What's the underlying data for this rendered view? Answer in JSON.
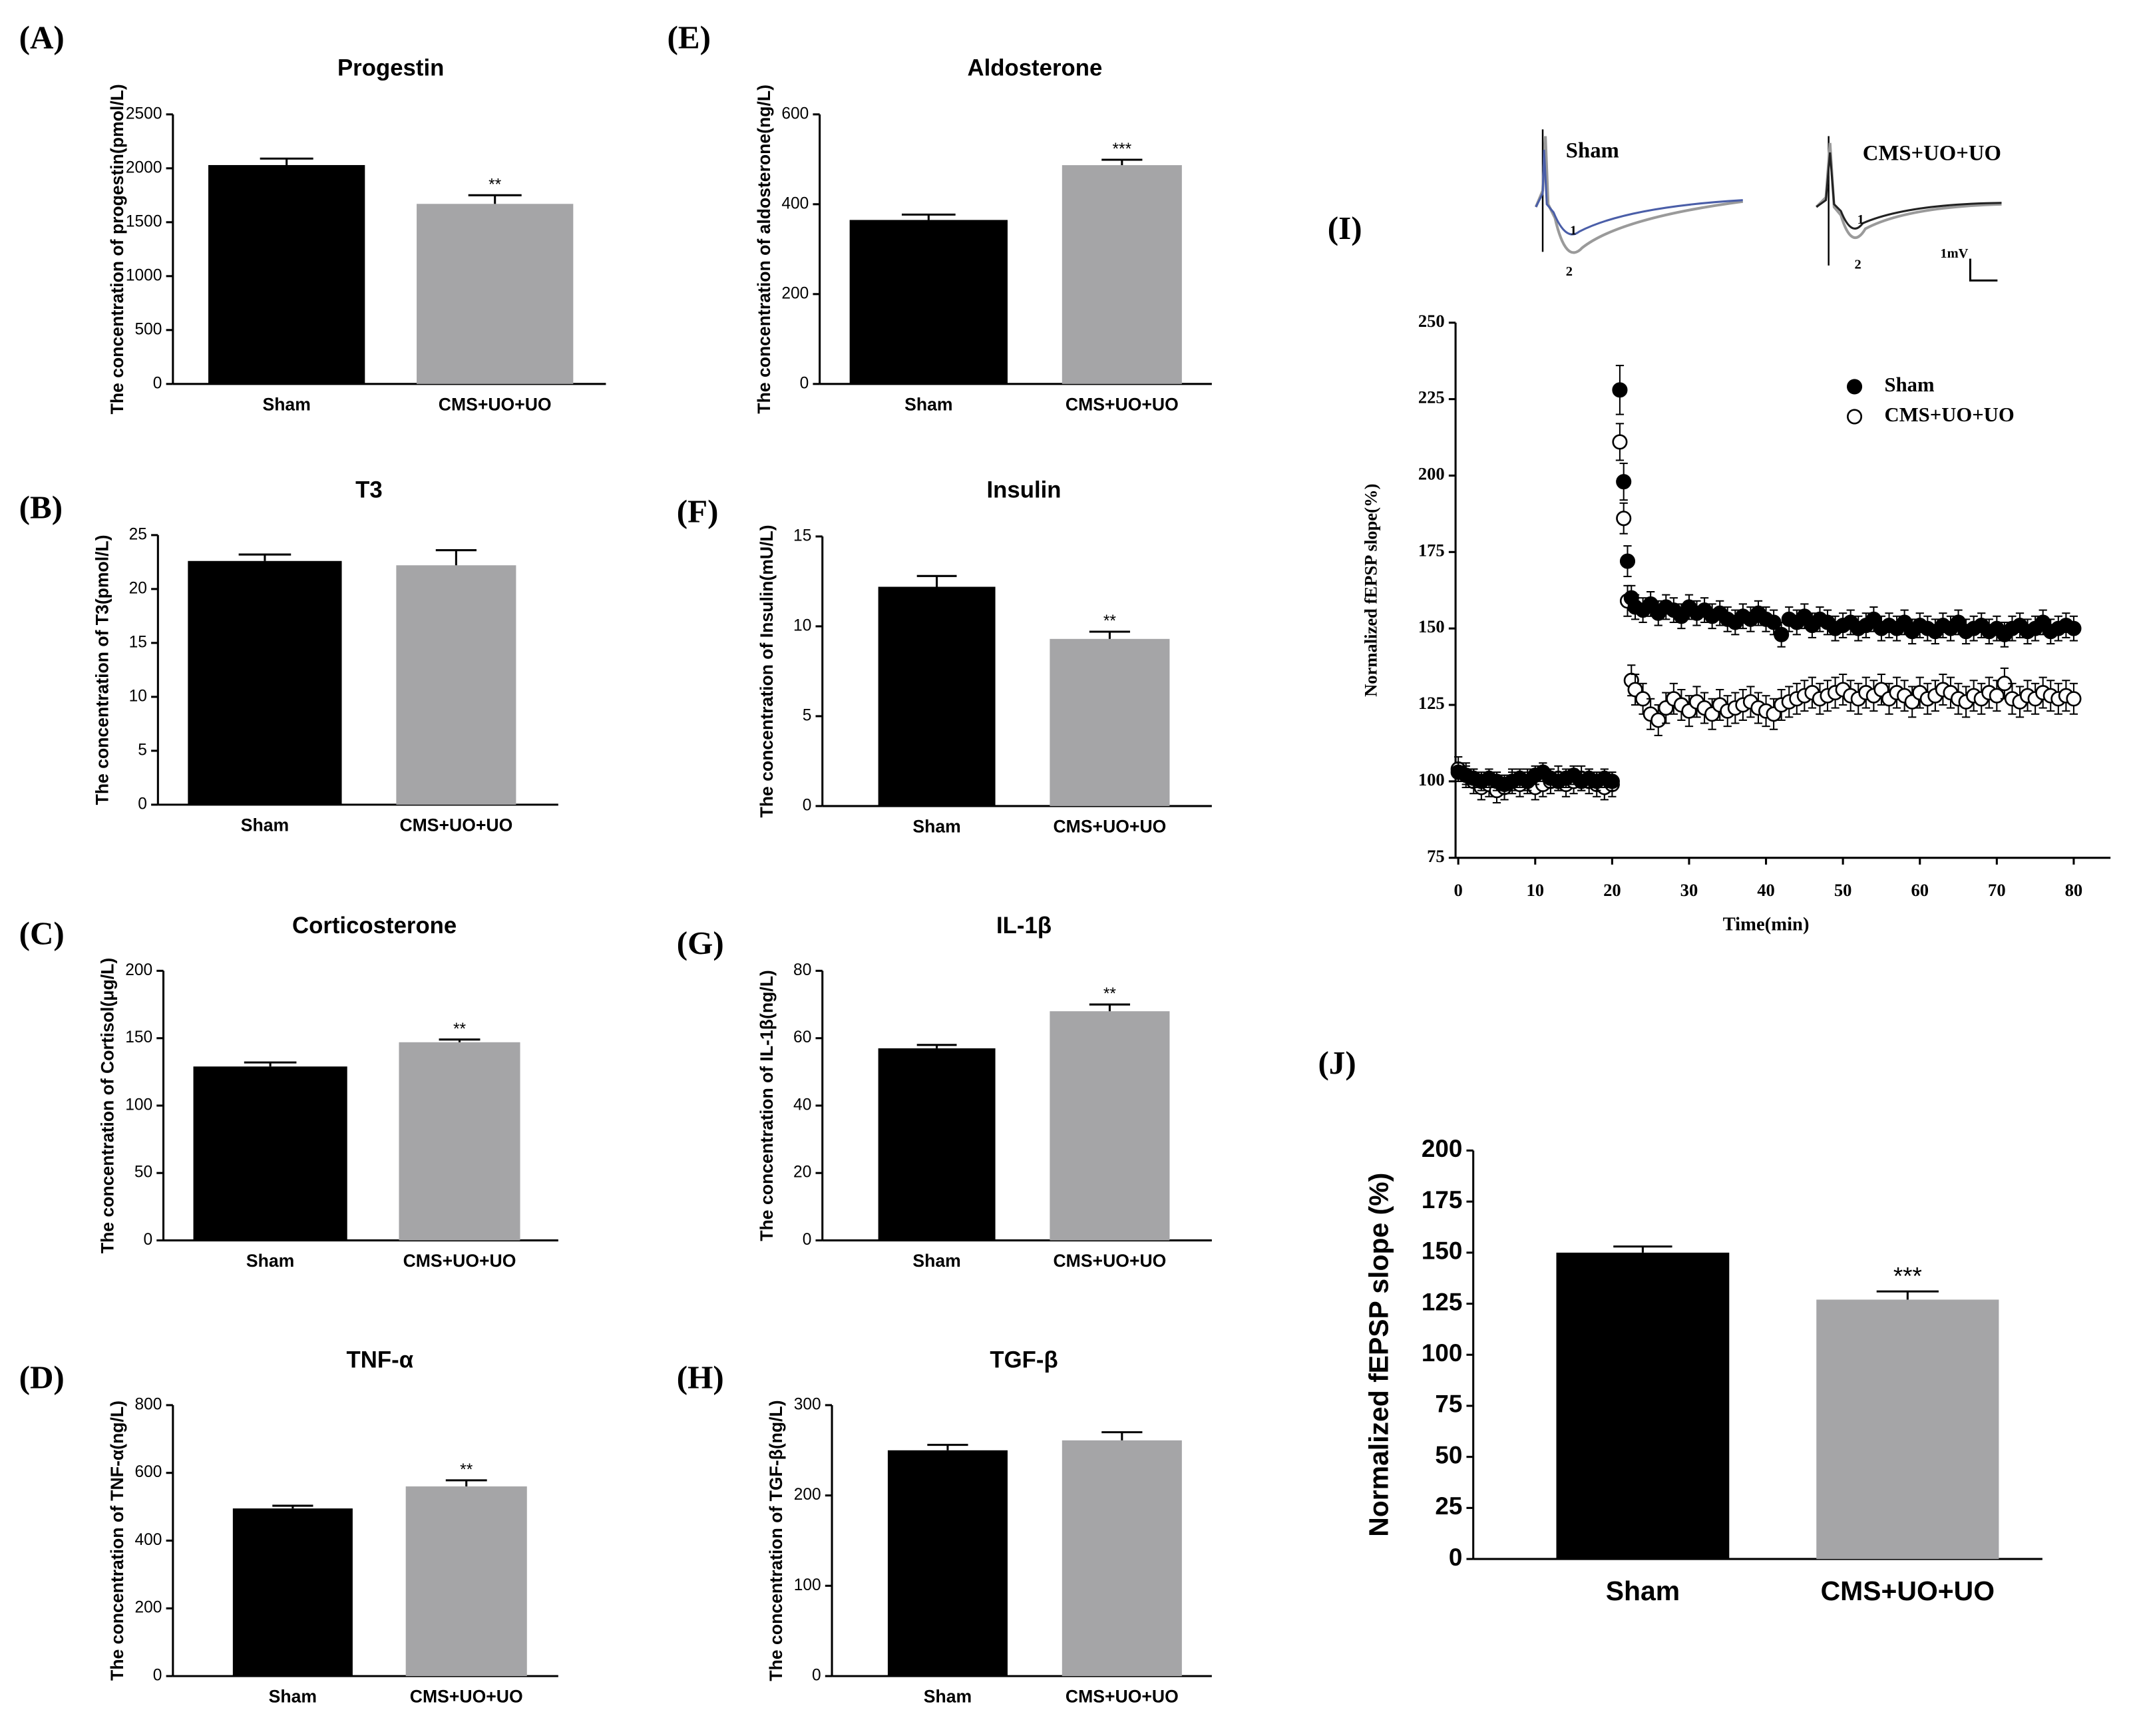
{
  "chart_data": [
    {
      "type": "bar",
      "panel": "(A)",
      "title": "Progestin",
      "ylabel": "The concentration of progestin(pmol/L)",
      "categories": [
        "Sham",
        "CMS+UO+UO"
      ],
      "values": [
        2030,
        1670
      ],
      "errors": [
        60,
        80
      ],
      "annotations": [
        null,
        "**"
      ],
      "colors": [
        "#000000",
        "#a5a5a7"
      ],
      "ylim": [
        0,
        2500
      ],
      "yticks": [
        0,
        500,
        1000,
        1500,
        2000,
        2500
      ]
    },
    {
      "type": "bar",
      "panel": "(B)",
      "title": "T3",
      "ylabel": "The concentration of T3(pmol/L)",
      "categories": [
        "Sham",
        "CMS+UO+UO"
      ],
      "values": [
        22.6,
        22.2
      ],
      "errors": [
        0.6,
        1.4
      ],
      "annotations": [
        null,
        null
      ],
      "colors": [
        "#000000",
        "#a5a5a7"
      ],
      "ylim": [
        0,
        25
      ],
      "yticks": [
        0,
        5,
        10,
        15,
        20,
        25
      ]
    },
    {
      "type": "bar",
      "panel": "(C)",
      "title": "Corticosterone",
      "ylabel": "The concentration of Cortisol(μg/L)",
      "categories": [
        "Sham",
        "CMS+UO+UO"
      ],
      "values": [
        129,
        147
      ],
      "errors": [
        3,
        2
      ],
      "annotations": [
        null,
        "**"
      ],
      "colors": [
        "#000000",
        "#a5a5a7"
      ],
      "ylim": [
        0,
        200
      ],
      "yticks": [
        0,
        50,
        100,
        150,
        200
      ]
    },
    {
      "type": "bar",
      "panel": "(D)",
      "title": "TNF-α",
      "ylabel": "The concentration of TNF-α(ng/L)",
      "categories": [
        "Sham",
        "CMS+UO+UO"
      ],
      "values": [
        495,
        560
      ],
      "errors": [
        8,
        18
      ],
      "annotations": [
        null,
        "**"
      ],
      "colors": [
        "#000000",
        "#a5a5a7"
      ],
      "ylim": [
        0,
        800
      ],
      "yticks": [
        0,
        200,
        400,
        600,
        800
      ]
    },
    {
      "type": "bar",
      "panel": "(E)",
      "title": "Aldosterone",
      "ylabel": "The concentration of aldosterone(ng/L)",
      "categories": [
        "Sham",
        "CMS+UO+UO"
      ],
      "values": [
        365,
        487
      ],
      "errors": [
        12,
        12
      ],
      "annotations": [
        null,
        "***"
      ],
      "colors": [
        "#000000",
        "#a5a5a7"
      ],
      "ylim": [
        0,
        600
      ],
      "yticks": [
        0,
        200,
        400,
        600
      ]
    },
    {
      "type": "bar",
      "panel": "(F)",
      "title": "Insulin",
      "ylabel": "The concentration of Insulin(mU/L)",
      "categories": [
        "Sham",
        "CMS+UO+UO"
      ],
      "values": [
        12.2,
        9.3
      ],
      "errors": [
        0.6,
        0.4
      ],
      "annotations": [
        null,
        "**"
      ],
      "colors": [
        "#000000",
        "#a5a5a7"
      ],
      "ylim": [
        0,
        15
      ],
      "yticks": [
        0,
        5,
        10,
        15
      ]
    },
    {
      "type": "bar",
      "panel": "(G)",
      "title": "IL-1β",
      "ylabel": "The concentration of IL-1β(ng/L)",
      "categories": [
        "Sham",
        "CMS+UO+UO"
      ],
      "values": [
        57,
        68
      ],
      "errors": [
        1,
        2
      ],
      "annotations": [
        null,
        "**"
      ],
      "colors": [
        "#000000",
        "#a5a5a7"
      ],
      "ylim": [
        0,
        80
      ],
      "yticks": [
        0,
        20,
        40,
        60,
        80
      ]
    },
    {
      "type": "bar",
      "panel": "(H)",
      "title": "TGF-β",
      "ylabel": "The concentration of TGF-β(ng/L)",
      "categories": [
        "Sham",
        "CMS+UO+UO"
      ],
      "values": [
        250,
        261
      ],
      "errors": [
        6,
        9
      ],
      "annotations": [
        null,
        null
      ],
      "colors": [
        "#000000",
        "#a5a5a7"
      ],
      "ylim": [
        0,
        300
      ],
      "yticks": [
        0,
        100,
        200,
        300
      ]
    },
    {
      "type": "scatter",
      "panel": "(I)",
      "xlabel": "Time(min)",
      "ylabel": "Normalized fEPSP slope(%)",
      "annotations": [
        "Sham",
        "CMS+UO+UO",
        "1",
        "2",
        "1",
        "2",
        "1mV"
      ],
      "x": [
        0,
        1,
        2,
        3,
        4,
        5,
        6,
        7,
        8,
        9,
        10,
        11,
        12,
        13,
        14,
        15,
        16,
        17,
        18,
        19,
        20,
        21,
        21.5,
        22,
        22.5,
        23,
        24,
        25,
        26,
        27,
        28,
        29,
        30,
        31,
        32,
        33,
        34,
        35,
        36,
        37,
        38,
        39,
        40,
        41,
        42,
        43,
        44,
        45,
        46,
        47,
        48,
        49,
        50,
        51,
        52,
        53,
        54,
        55,
        56,
        57,
        58,
        59,
        60,
        61,
        62,
        63,
        64,
        65,
        66,
        67,
        68,
        69,
        70,
        71,
        72,
        73,
        74,
        75,
        76,
        77,
        78,
        79,
        80
      ],
      "series": [
        {
          "name": "Sham",
          "color": "#000000",
          "marker": "filled",
          "values": [
            103,
            102,
            101,
            100,
            101,
            100,
            99,
            100,
            101,
            100,
            102,
            103,
            101,
            100,
            101,
            102,
            100,
            101,
            100,
            101,
            100,
            228,
            198,
            172,
            160,
            157,
            156,
            158,
            155,
            157,
            156,
            154,
            157,
            155,
            156,
            154,
            155,
            153,
            152,
            154,
            153,
            155,
            153,
            152,
            148,
            153,
            152,
            154,
            151,
            153,
            152,
            150,
            151,
            152,
            150,
            151,
            153,
            150,
            151,
            150,
            152,
            149,
            151,
            150,
            149,
            151,
            150,
            152,
            149,
            150,
            151,
            149,
            150,
            148,
            150,
            151,
            149,
            150,
            152,
            149,
            150,
            151,
            150
          ],
          "errors": [
            3,
            3,
            3,
            3,
            3,
            3,
            3,
            3,
            3,
            3,
            3,
            3,
            3,
            3,
            3,
            3,
            3,
            3,
            3,
            3,
            3,
            8,
            6,
            5,
            4,
            4,
            4,
            4,
            4,
            4,
            4,
            4,
            4,
            4,
            4,
            4,
            4,
            4,
            4,
            4,
            4,
            4,
            4,
            4,
            4,
            4,
            4,
            4,
            4,
            4,
            4,
            4,
            4,
            4,
            4,
            4,
            4,
            4,
            4,
            4,
            4,
            4,
            4,
            4,
            4,
            4,
            4,
            4,
            4,
            4,
            4,
            4,
            4,
            4,
            4,
            4,
            4,
            4,
            4,
            4,
            4,
            4,
            4
          ]
        },
        {
          "name": "CMS+UO+UO",
          "color": "#000000",
          "marker": "open",
          "values": [
            104,
            102,
            100,
            98,
            99,
            97,
            98,
            100,
            99,
            100,
            98,
            99,
            100,
            101,
            99,
            100,
            101,
            100,
            99,
            98,
            99,
            211,
            186,
            159,
            133,
            130,
            127,
            122,
            120,
            124,
            127,
            125,
            123,
            126,
            124,
            122,
            125,
            123,
            124,
            125,
            126,
            124,
            123,
            122,
            125,
            126,
            127,
            128,
            129,
            127,
            128,
            129,
            130,
            128,
            127,
            129,
            128,
            130,
            127,
            129,
            128,
            126,
            129,
            127,
            128,
            130,
            129,
            127,
            126,
            128,
            127,
            129,
            128,
            132,
            127,
            126,
            128,
            127,
            129,
            128,
            127,
            128,
            127
          ],
          "errors": [
            4,
            4,
            4,
            4,
            4,
            4,
            4,
            4,
            4,
            4,
            4,
            4,
            4,
            4,
            4,
            4,
            4,
            4,
            4,
            4,
            4,
            6,
            5,
            5,
            5,
            5,
            5,
            5,
            5,
            5,
            5,
            5,
            5,
            5,
            5,
            5,
            5,
            5,
            5,
            5,
            5,
            5,
            5,
            5,
            5,
            5,
            5,
            5,
            5,
            5,
            5,
            5,
            5,
            5,
            5,
            5,
            5,
            5,
            5,
            5,
            5,
            5,
            5,
            5,
            5,
            5,
            5,
            5,
            5,
            5,
            5,
            5,
            5,
            5,
            5,
            5,
            5,
            5,
            5,
            5,
            5,
            5,
            5
          ]
        }
      ],
      "xlim": [
        0,
        80
      ],
      "xticks": [
        0,
        10,
        20,
        30,
        40,
        50,
        60,
        70,
        80
      ],
      "ylim": [
        75,
        250
      ],
      "yticks": [
        75,
        100,
        125,
        150,
        175,
        200,
        225,
        250
      ]
    },
    {
      "type": "bar",
      "panel": "(J)",
      "title": null,
      "ylabel": "Normalized fEPSP slope (%)",
      "categories": [
        "Sham",
        "CMS+UO+UO"
      ],
      "values": [
        150,
        127
      ],
      "errors": [
        3,
        4
      ],
      "annotations": [
        null,
        "***"
      ],
      "colors": [
        "#000000",
        "#a5a5a7"
      ],
      "ylim": [
        0,
        200
      ],
      "yticks": [
        0,
        25,
        50,
        75,
        100,
        125,
        150,
        175,
        200
      ]
    }
  ]
}
